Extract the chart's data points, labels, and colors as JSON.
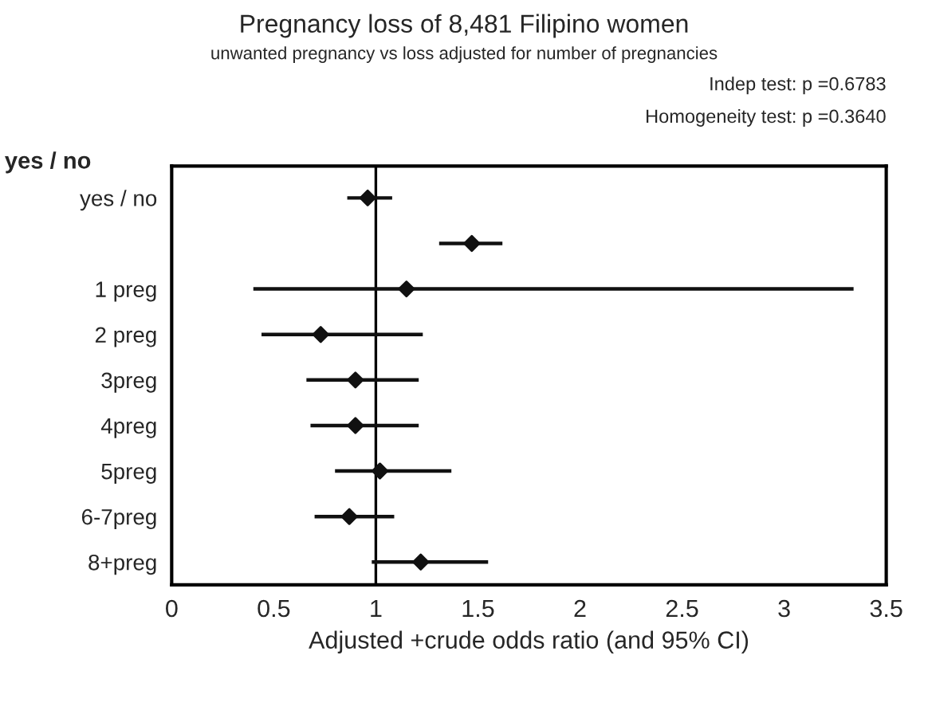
{
  "chart_data": {
    "type": "scatter",
    "orientation": "horizontal",
    "title": "Pregnancy loss of 8,481 Filipino women",
    "subtitle": "unwanted pregnancy vs loss adjusted for number of pregnancies",
    "xlabel": "Adjusted +crude odds ratio (and 95% CI)",
    "annotations": [
      "Indep test: p =0.6783",
      "Homogeneity test: p =0.3640",
      "yes / no"
    ],
    "categories": [
      "yes / no",
      null,
      "1 preg",
      "2 preg",
      "3preg",
      "4preg",
      "5preg",
      "6-7preg",
      "8+preg"
    ],
    "series": [
      {
        "color": "#111111",
        "values": [
          0.96,
          1.47,
          1.15,
          0.73,
          0.9,
          0.9,
          1.02,
          0.87,
          1.22
        ],
        "errors": [
          [
            0.86,
            1.08
          ],
          [
            1.31,
            1.62
          ],
          [
            0.4,
            3.34
          ],
          [
            0.44,
            1.23
          ],
          [
            0.66,
            1.21
          ],
          [
            0.68,
            1.21
          ],
          [
            0.8,
            1.37
          ],
          [
            0.7,
            1.09
          ],
          [
            0.98,
            1.55
          ]
        ]
      }
    ],
    "marker": "diamond",
    "ref_lines": [
      {
        "axis": "x",
        "value": 1,
        "color": "#000000"
      }
    ],
    "xlim": [
      0,
      3.5
    ],
    "xticks": [
      0,
      0.5,
      1,
      1.5,
      2,
      2.5,
      3,
      3.5
    ],
    "grid": false,
    "legend": false
  }
}
